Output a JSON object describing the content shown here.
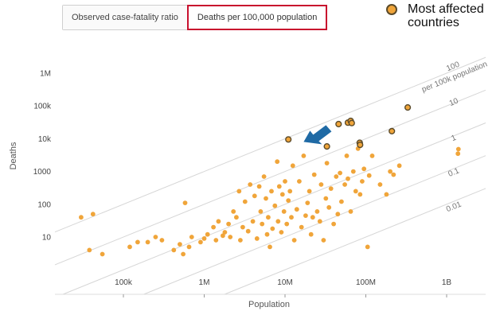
{
  "tabs": [
    {
      "label": "Observed case-fatality ratio",
      "active": false
    },
    {
      "label": "Deaths per 100,000 population",
      "active": true
    }
  ],
  "legend": {
    "label": "Most affected countries",
    "color": "#f0a53a",
    "edge": "#5a4a2a"
  },
  "chart_data": {
    "type": "scatter",
    "xlabel": "Population",
    "ylabel": "Deaths",
    "xscale": "log",
    "yscale": "log",
    "xlim": [
      20000,
      3000000000
    ],
    "ylim": [
      1,
      8000000
    ],
    "x_ticks": [
      {
        "value": 100000,
        "label": "100k"
      },
      {
        "value": 1000000,
        "label": "1M"
      },
      {
        "value": 10000000,
        "label": "10M"
      },
      {
        "value": 100000000,
        "label": "100M"
      },
      {
        "value": 1000000000,
        "label": "1B"
      }
    ],
    "y_ticks": [
      {
        "value": 10,
        "label": "10"
      },
      {
        "value": 100,
        "label": "100"
      },
      {
        "value": 1000,
        "label": "1000"
      },
      {
        "value": 10000,
        "label": "10k"
      },
      {
        "value": 100000,
        "label": "100k"
      },
      {
        "value": 1000000,
        "label": "1M"
      }
    ],
    "grid": false,
    "reference_lines": [
      {
        "per100k": 100,
        "label": "100",
        "sublabel": "per 100k population"
      },
      {
        "per100k": 10,
        "label": "10"
      },
      {
        "per100k": 1,
        "label": "1"
      },
      {
        "per100k": 0.1,
        "label": "0.1"
      },
      {
        "per100k": 0.01,
        "label": "0.01"
      }
    ],
    "point_color": "#f0a53a",
    "highlight_edge": "#5a4a2a",
    "annotation": {
      "type": "arrow",
      "color": "#1f6aa5",
      "x": 17000000,
      "y": 8000
    },
    "series": [
      {
        "highlighted": false,
        "points": [
          [
            30000,
            40
          ],
          [
            38000,
            4
          ],
          [
            42000,
            50
          ],
          [
            55000,
            3
          ],
          [
            120000,
            5
          ],
          [
            150000,
            7
          ],
          [
            200000,
            7
          ],
          [
            250000,
            10
          ],
          [
            300000,
            8
          ],
          [
            420000,
            4
          ],
          [
            500000,
            6
          ],
          [
            550000,
            3
          ],
          [
            580000,
            110
          ],
          [
            650000,
            5
          ],
          [
            700000,
            10
          ],
          [
            900000,
            7
          ],
          [
            1000000,
            9
          ],
          [
            1100000,
            12
          ],
          [
            1300000,
            20
          ],
          [
            1400000,
            8
          ],
          [
            1500000,
            30
          ],
          [
            1700000,
            11
          ],
          [
            1800000,
            14
          ],
          [
            2000000,
            25
          ],
          [
            2100000,
            10
          ],
          [
            2300000,
            60
          ],
          [
            2500000,
            40
          ],
          [
            2700000,
            250
          ],
          [
            2800000,
            8
          ],
          [
            3000000,
            20
          ],
          [
            3200000,
            120
          ],
          [
            3500000,
            15
          ],
          [
            3700000,
            400
          ],
          [
            4000000,
            30
          ],
          [
            4200000,
            180
          ],
          [
            4500000,
            9
          ],
          [
            4800000,
            350
          ],
          [
            5000000,
            60
          ],
          [
            5200000,
            25
          ],
          [
            5500000,
            700
          ],
          [
            5800000,
            150
          ],
          [
            6000000,
            12
          ],
          [
            6200000,
            40
          ],
          [
            6500000,
            5
          ],
          [
            6800000,
            250
          ],
          [
            7000000,
            18
          ],
          [
            7500000,
            90
          ],
          [
            8000000,
            2000
          ],
          [
            8200000,
            30
          ],
          [
            8500000,
            350
          ],
          [
            9000000,
            14
          ],
          [
            9300000,
            200
          ],
          [
            9700000,
            60
          ],
          [
            10000000,
            500
          ],
          [
            10500000,
            25
          ],
          [
            11000000,
            130
          ],
          [
            11500000,
            250
          ],
          [
            12000000,
            40
          ],
          [
            12500000,
            1500
          ],
          [
            13000000,
            8
          ],
          [
            14000000,
            70
          ],
          [
            15000000,
            500
          ],
          [
            16000000,
            20
          ],
          [
            17000000,
            3000
          ],
          [
            18000000,
            45
          ],
          [
            19000000,
            110
          ],
          [
            20000000,
            250
          ],
          [
            21000000,
            12
          ],
          [
            22000000,
            40
          ],
          [
            23000000,
            800
          ],
          [
            25000000,
            60
          ],
          [
            27000000,
            30
          ],
          [
            28000000,
            400
          ],
          [
            30000000,
            8
          ],
          [
            32000000,
            150
          ],
          [
            33000000,
            1800
          ],
          [
            35000000,
            80
          ],
          [
            37000000,
            300
          ],
          [
            40000000,
            25
          ],
          [
            43000000,
            700
          ],
          [
            45000000,
            50
          ],
          [
            48000000,
            900
          ],
          [
            50000000,
            120
          ],
          [
            55000000,
            400
          ],
          [
            58000000,
            3000
          ],
          [
            60000000,
            600
          ],
          [
            65000000,
            60
          ],
          [
            70000000,
            1000
          ],
          [
            75000000,
            250
          ],
          [
            80000000,
            5000
          ],
          [
            85000000,
            200
          ],
          [
            90000000,
            500
          ],
          [
            95000000,
            1200
          ],
          [
            105000000,
            5
          ],
          [
            110000000,
            750
          ],
          [
            120000000,
            3000
          ],
          [
            150000000,
            400
          ],
          [
            180000000,
            200
          ],
          [
            200000000,
            1000
          ],
          [
            220000000,
            800
          ],
          [
            260000000,
            1500
          ],
          [
            1380000000,
            3500
          ],
          [
            1400000000,
            4800
          ]
        ]
      },
      {
        "highlighted": true,
        "points": [
          [
            11000000,
            9500
          ],
          [
            33000000,
            5800
          ],
          [
            46000000,
            28000
          ],
          [
            60000000,
            31000
          ],
          [
            65000000,
            35000
          ],
          [
            67000000,
            30000
          ],
          [
            84000000,
            7500
          ],
          [
            85000000,
            6500
          ],
          [
            210000000,
            17000
          ],
          [
            330000000,
            90000
          ]
        ]
      }
    ]
  }
}
